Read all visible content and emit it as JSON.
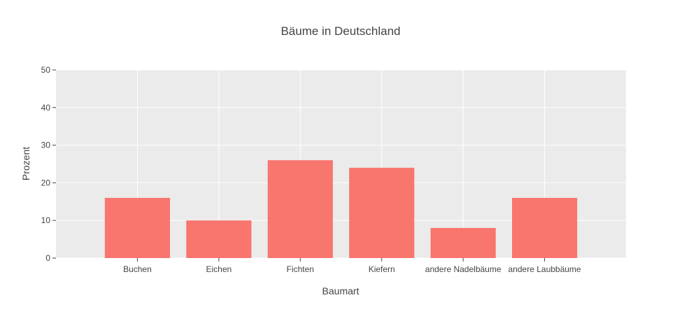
{
  "chart_data": {
    "type": "bar",
    "title": "Bäume in Deutschland",
    "xlabel": "Baumart",
    "ylabel": "Prozent",
    "categories": [
      "Buchen",
      "Eichen",
      "Fichten",
      "Kiefern",
      "andere Nadelbäume",
      "andere Laubbäume"
    ],
    "values": [
      16,
      10,
      26,
      24,
      8,
      16
    ],
    "ylim": [
      0,
      50
    ],
    "yticks": [
      0,
      10,
      20,
      30,
      40,
      50
    ],
    "grid": true,
    "colors": {
      "bar": "#f8766d",
      "plot_background": "#ebebeb",
      "grid": "#ffffff"
    }
  }
}
